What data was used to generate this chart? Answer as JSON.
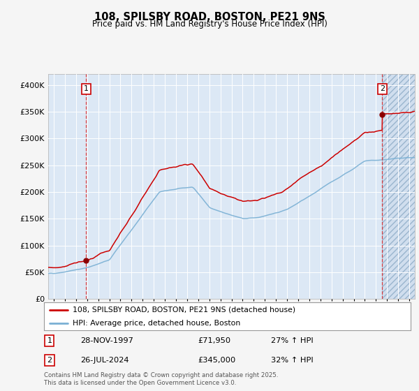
{
  "title": "108, SPILSBY ROAD, BOSTON, PE21 9NS",
  "subtitle": "Price paid vs. HM Land Registry's House Price Index (HPI)",
  "legend_line1": "108, SPILSBY ROAD, BOSTON, PE21 9NS (detached house)",
  "legend_line2": "HPI: Average price, detached house, Boston",
  "annotation1_date": "28-NOV-1997",
  "annotation1_price": "£71,950",
  "annotation1_hpi": "27% ↑ HPI",
  "annotation2_date": "26-JUL-2024",
  "annotation2_price": "£345,000",
  "annotation2_hpi": "32% ↑ HPI",
  "sale1_year": 1997.91,
  "sale1_value": 71950,
  "sale2_year": 2024.56,
  "sale2_value": 345000,
  "hpi_color": "#7ab0d4",
  "red_line_color": "#cc0000",
  "plot_bg_color": "#dce8f5",
  "grid_color": "#ffffff",
  "footer_text": "Contains HM Land Registry data © Crown copyright and database right 2025.\nThis data is licensed under the Open Government Licence v3.0.",
  "ylim": [
    0,
    420000
  ],
  "yticks": [
    0,
    50000,
    100000,
    150000,
    200000,
    250000,
    300000,
    350000,
    400000
  ],
  "xlim_start": 1994.5,
  "xlim_end": 2027.5,
  "xtick_start": 1995,
  "xtick_end": 2027
}
